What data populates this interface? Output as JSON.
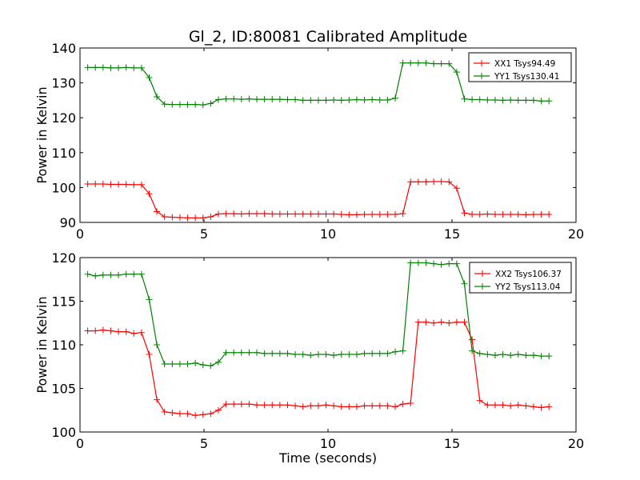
{
  "chart_data": [
    {
      "type": "line",
      "title": "Gl_2, ID:80081 Calibrated Amplitude",
      "xlabel": "",
      "ylabel": "Power in Kelvin",
      "xlim": [
        0,
        20
      ],
      "ylim": [
        90,
        140
      ],
      "xticks": [
        "0",
        "5",
        "10",
        "15",
        "20"
      ],
      "yticks": [
        "90",
        "100",
        "110",
        "120",
        "130",
        "140"
      ],
      "grid": false,
      "legend_position": "top-right",
      "x": [
        0.31,
        0.62,
        0.93,
        1.24,
        1.55,
        1.86,
        2.17,
        2.48,
        2.79,
        3.1,
        3.41,
        3.72,
        4.03,
        4.34,
        4.65,
        4.96,
        5.27,
        5.58,
        5.89,
        6.2,
        6.51,
        6.82,
        7.13,
        7.44,
        7.75,
        8.06,
        8.37,
        8.68,
        8.99,
        9.3,
        9.61,
        9.92,
        10.23,
        10.54,
        10.85,
        11.16,
        11.47,
        11.78,
        12.09,
        12.4,
        12.71,
        13.02,
        13.33,
        13.64,
        13.95,
        14.26,
        14.57,
        14.88,
        15.19,
        15.5,
        15.81,
        16.12,
        16.43,
        16.74,
        17.05,
        17.36,
        17.67,
        17.98,
        18.29,
        18.6,
        18.91
      ],
      "series": [
        {
          "name": "XX1 Tsys94.49",
          "color": "#ff0000",
          "values": [
            101.0,
            101.0,
            101.0,
            100.9,
            100.9,
            100.9,
            100.8,
            100.8,
            98.2,
            93.1,
            91.6,
            91.5,
            91.4,
            91.3,
            91.3,
            91.3,
            91.6,
            92.4,
            92.5,
            92.5,
            92.4,
            92.5,
            92.5,
            92.5,
            92.4,
            92.4,
            92.4,
            92.4,
            92.4,
            92.4,
            92.4,
            92.4,
            92.4,
            92.3,
            92.2,
            92.2,
            92.3,
            92.3,
            92.3,
            92.3,
            92.3,
            92.5,
            101.6,
            101.6,
            101.6,
            101.7,
            101.7,
            101.6,
            99.8,
            92.7,
            92.3,
            92.3,
            92.4,
            92.3,
            92.3,
            92.3,
            92.3,
            92.2,
            92.3,
            92.3,
            92.3
          ]
        },
        {
          "name": "YY1 Tsys130.41",
          "color": "#008000",
          "values": [
            134.4,
            134.4,
            134.4,
            134.3,
            134.3,
            134.4,
            134.3,
            134.3,
            131.5,
            126.0,
            123.9,
            123.8,
            123.8,
            123.8,
            123.8,
            123.7,
            124.1,
            125.2,
            125.4,
            125.4,
            125.3,
            125.4,
            125.3,
            125.3,
            125.3,
            125.3,
            125.2,
            125.2,
            125.0,
            125.0,
            125.0,
            125.0,
            125.1,
            125.0,
            125.1,
            125.2,
            125.1,
            125.2,
            125.1,
            125.1,
            125.6,
            135.7,
            135.7,
            135.7,
            135.7,
            135.5,
            135.5,
            135.5,
            133.1,
            125.4,
            125.2,
            125.2,
            125.1,
            125.1,
            125.0,
            125.1,
            125.0,
            125.0,
            125.0,
            124.8,
            124.8
          ]
        }
      ]
    },
    {
      "type": "line",
      "title": "",
      "xlabel": "Time (seconds)",
      "ylabel": "Power in Kelvin",
      "xlim": [
        0,
        20
      ],
      "ylim": [
        100,
        120
      ],
      "xticks": [
        "0",
        "5",
        "10",
        "15",
        "20"
      ],
      "yticks": [
        "100",
        "105",
        "110",
        "115",
        "120"
      ],
      "grid": false,
      "legend_position": "top-right",
      "x": [
        0.31,
        0.62,
        0.93,
        1.24,
        1.55,
        1.86,
        2.17,
        2.48,
        2.79,
        3.1,
        3.41,
        3.72,
        4.03,
        4.34,
        4.65,
        4.96,
        5.27,
        5.58,
        5.89,
        6.2,
        6.51,
        6.82,
        7.13,
        7.44,
        7.75,
        8.06,
        8.37,
        8.68,
        8.99,
        9.3,
        9.61,
        9.92,
        10.23,
        10.54,
        10.85,
        11.16,
        11.47,
        11.78,
        12.09,
        12.4,
        12.71,
        13.02,
        13.33,
        13.64,
        13.95,
        14.26,
        14.57,
        14.88,
        15.19,
        15.5,
        15.81,
        16.12,
        16.43,
        16.74,
        17.05,
        17.36,
        17.67,
        17.98,
        18.29,
        18.6,
        18.91
      ],
      "series": [
        {
          "name": "XX2 Tsys106.37",
          "color": "#ff0000",
          "values": [
            111.6,
            111.6,
            111.7,
            111.6,
            111.5,
            111.5,
            111.3,
            111.4,
            108.9,
            103.7,
            102.3,
            102.2,
            102.1,
            102.1,
            101.9,
            102.0,
            102.1,
            102.5,
            103.2,
            103.2,
            103.2,
            103.2,
            103.1,
            103.1,
            103.1,
            103.1,
            103.1,
            103.0,
            102.9,
            103.0,
            103.0,
            103.1,
            103.0,
            102.9,
            102.9,
            102.9,
            103.0,
            103.0,
            103.0,
            103.0,
            102.9,
            103.2,
            103.3,
            112.6,
            112.6,
            112.5,
            112.6,
            112.5,
            112.6,
            112.6,
            110.6,
            103.6,
            103.1,
            103.1,
            103.1,
            103.0,
            103.1,
            103.0,
            102.9,
            102.8,
            102.9
          ]
        },
        {
          "name": "YY2 Tsys113.04",
          "color": "#008000",
          "values": [
            118.1,
            117.9,
            118.0,
            118.0,
            118.0,
            118.1,
            118.1,
            118.1,
            115.2,
            110.0,
            107.8,
            107.8,
            107.8,
            107.8,
            107.9,
            107.7,
            107.6,
            108.0,
            109.1,
            109.1,
            109.1,
            109.1,
            109.1,
            109.0,
            109.0,
            109.0,
            109.0,
            108.9,
            108.9,
            108.8,
            108.9,
            108.9,
            108.8,
            108.9,
            108.9,
            108.9,
            109.0,
            109.0,
            109.0,
            109.0,
            109.2,
            109.3,
            119.4,
            119.4,
            119.4,
            119.3,
            119.2,
            119.3,
            119.3,
            117.0,
            109.3,
            109.0,
            108.9,
            108.8,
            108.9,
            108.8,
            108.9,
            108.8,
            108.8,
            108.7,
            108.7
          ]
        }
      ]
    }
  ]
}
